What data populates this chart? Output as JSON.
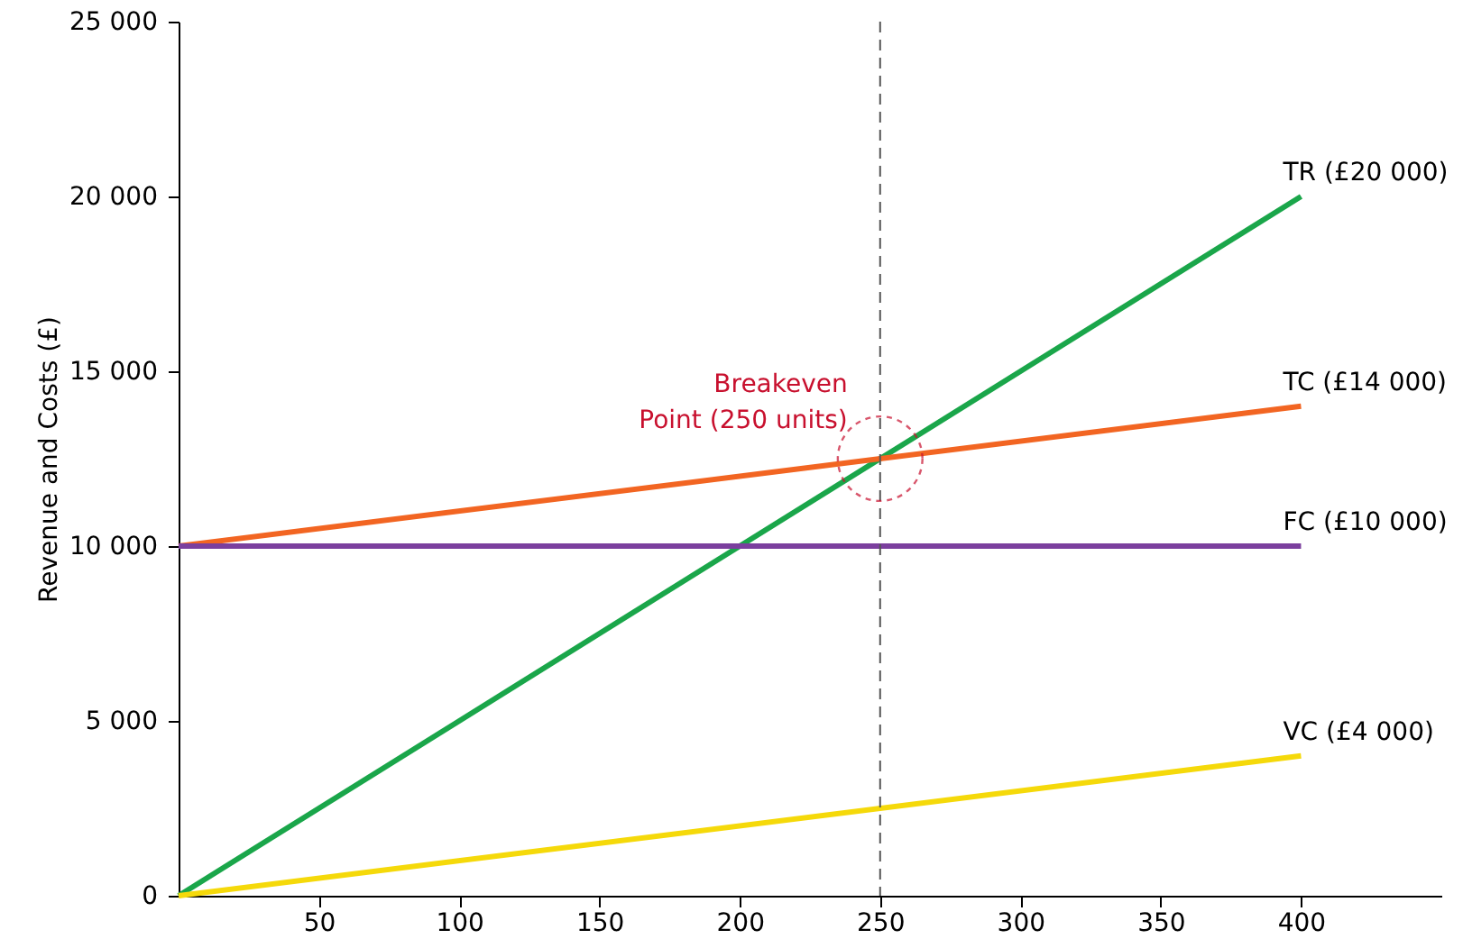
{
  "chart_data": {
    "type": "line",
    "ylabel": "Revenue and Costs (£)",
    "x": [
      0,
      400
    ],
    "series": [
      {
        "name": "TR (£20 000)",
        "color": "#1aa64a",
        "values": [
          0,
          20000
        ]
      },
      {
        "name": "TC (£14 000)",
        "color": "#f26522",
        "values": [
          10000,
          14000
        ]
      },
      {
        "name": "FC (£10 000)",
        "color": "#7b3f9e",
        "values": [
          10000,
          10000
        ]
      },
      {
        "name": "VC (£4 000)",
        "color": "#f5d90a",
        "values": [
          0,
          4000
        ]
      }
    ],
    "xlim": [
      0,
      450
    ],
    "xticks": [
      50,
      100,
      150,
      200,
      250,
      300,
      350,
      400
    ],
    "ylim": [
      0,
      25000
    ],
    "yticks": [
      {
        "value": 0,
        "label": "0"
      },
      {
        "value": 5000,
        "label": "5 000"
      },
      {
        "value": 10000,
        "label": "10 000"
      },
      {
        "value": 15000,
        "label": "15 000"
      },
      {
        "value": 20000,
        "label": "20 000"
      },
      {
        "value": 25000,
        "label": "25 000"
      }
    ],
    "ref_lines": [
      {
        "axis": "x",
        "value": 250,
        "label": null,
        "color": "#555555",
        "line_style": "dashed"
      }
    ],
    "annotations": [
      {
        "text": "Breakeven\nPoint (250 units)",
        "x": 250,
        "y": 12500
      }
    ],
    "grid": false,
    "marker": "none",
    "line_style": "solid"
  }
}
